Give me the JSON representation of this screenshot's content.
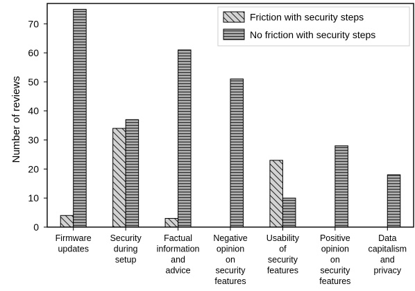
{
  "chart_data": {
    "type": "bar",
    "title": "",
    "xlabel": "",
    "ylabel": "Number of reviews",
    "ylim": [
      0,
      77
    ],
    "yticks": [
      0,
      10,
      20,
      30,
      40,
      50,
      60,
      70
    ],
    "categories": [
      [
        "Firmware",
        "updates"
      ],
      [
        "Security",
        "during",
        "setup"
      ],
      [
        "Factual",
        "information",
        "and",
        "advice"
      ],
      [
        "Negative",
        "opinion",
        "on",
        "security",
        "features"
      ],
      [
        "Usability",
        "of",
        "security",
        "features"
      ],
      [
        "Positive",
        "opinion",
        "on",
        "security",
        "features"
      ],
      [
        "Data",
        "capitalism",
        "and",
        "privacy"
      ]
    ],
    "series": [
      {
        "name": "Friction with security steps",
        "values": [
          4,
          34,
          3,
          0,
          23,
          0,
          0
        ],
        "pattern": "diagonal",
        "color": "#d3d3d3"
      },
      {
        "name": "No friction with security steps",
        "values": [
          75,
          37,
          61,
          51,
          10,
          28,
          18
        ],
        "pattern": "horizontal",
        "color": "#a9a9a9"
      }
    ],
    "legend_position": "top-right",
    "grid": false
  }
}
